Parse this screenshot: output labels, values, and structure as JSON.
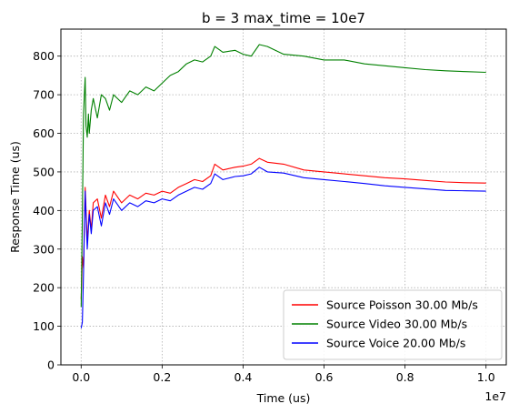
{
  "chart_data": {
    "type": "line",
    "title": "b = 3 max_time = 10e7",
    "xlabel": "Time (us)",
    "ylabel": "Response Time (us)",
    "x_offset_label": "1e7",
    "xlim": [
      -0.05,
      1.05
    ],
    "ylim": [
      0,
      870
    ],
    "x_ticks": [
      0.0,
      0.2,
      0.4,
      0.6,
      0.8,
      1.0
    ],
    "x_tick_labels": [
      "0.0",
      "0.2",
      "0.4",
      "0.6",
      "0.8",
      "1.0"
    ],
    "y_ticks": [
      0,
      100,
      200,
      300,
      400,
      500,
      600,
      700,
      800
    ],
    "y_tick_labels": [
      "0",
      "100",
      "200",
      "300",
      "400",
      "500",
      "600",
      "700",
      "800"
    ],
    "grid": true,
    "legend_position": "bottom-right",
    "colors": {
      "poisson": "#ff0000",
      "video": "#008000",
      "voice": "#0000ff"
    },
    "series": [
      {
        "name": "Source Poisson 30.00 Mb/s",
        "color": "#ff0000",
        "x": [
          0.0,
          0.003,
          0.006,
          0.01,
          0.015,
          0.02,
          0.025,
          0.03,
          0.04,
          0.05,
          0.06,
          0.07,
          0.08,
          0.1,
          0.12,
          0.14,
          0.16,
          0.18,
          0.2,
          0.22,
          0.24,
          0.26,
          0.28,
          0.3,
          0.32,
          0.33,
          0.35,
          0.38,
          0.4,
          0.42,
          0.44,
          0.46,
          0.5,
          0.55,
          0.6,
          0.65,
          0.7,
          0.75,
          0.8,
          0.85,
          0.9,
          0.95,
          1.0
        ],
        "values": [
          170,
          280,
          250,
          460,
          320,
          400,
          350,
          420,
          430,
          380,
          440,
          410,
          450,
          420,
          440,
          430,
          445,
          440,
          450,
          445,
          460,
          470,
          480,
          475,
          490,
          520,
          505,
          512,
          515,
          520,
          535,
          525,
          520,
          505,
          500,
          495,
          490,
          485,
          482,
          478,
          474,
          472,
          471
        ]
      },
      {
        "name": "Source Video 30.00 Mb/s",
        "color": "#008000",
        "x": [
          0.0,
          0.003,
          0.006,
          0.008,
          0.01,
          0.012,
          0.015,
          0.018,
          0.02,
          0.025,
          0.03,
          0.04,
          0.05,
          0.06,
          0.07,
          0.08,
          0.1,
          0.12,
          0.14,
          0.16,
          0.18,
          0.2,
          0.22,
          0.24,
          0.26,
          0.28,
          0.3,
          0.32,
          0.33,
          0.35,
          0.38,
          0.4,
          0.42,
          0.44,
          0.46,
          0.5,
          0.55,
          0.6,
          0.65,
          0.7,
          0.75,
          0.8,
          0.85,
          0.9,
          0.95,
          1.0
        ],
        "values": [
          150,
          380,
          650,
          700,
          745,
          620,
          590,
          650,
          600,
          660,
          690,
          640,
          700,
          690,
          660,
          700,
          680,
          710,
          700,
          720,
          710,
          730,
          750,
          760,
          780,
          790,
          785,
          800,
          825,
          810,
          815,
          805,
          800,
          830,
          825,
          805,
          800,
          790,
          790,
          780,
          775,
          770,
          765,
          762,
          760,
          758
        ]
      },
      {
        "name": "Source Voice 20.00 Mb/s",
        "color": "#0000ff",
        "x": [
          0.0,
          0.003,
          0.006,
          0.01,
          0.015,
          0.02,
          0.025,
          0.03,
          0.04,
          0.05,
          0.06,
          0.07,
          0.08,
          0.1,
          0.12,
          0.14,
          0.16,
          0.18,
          0.2,
          0.22,
          0.24,
          0.26,
          0.28,
          0.3,
          0.32,
          0.33,
          0.35,
          0.38,
          0.4,
          0.42,
          0.44,
          0.46,
          0.5,
          0.55,
          0.6,
          0.65,
          0.7,
          0.75,
          0.8,
          0.85,
          0.9,
          0.95,
          1.0
        ],
        "values": [
          95,
          110,
          240,
          450,
          300,
          390,
          340,
          400,
          410,
          360,
          420,
          390,
          430,
          400,
          420,
          410,
          425,
          420,
          430,
          425,
          440,
          450,
          460,
          455,
          470,
          495,
          480,
          488,
          490,
          495,
          512,
          500,
          497,
          485,
          480,
          475,
          470,
          464,
          460,
          456,
          452,
          451,
          450
        ]
      }
    ]
  }
}
